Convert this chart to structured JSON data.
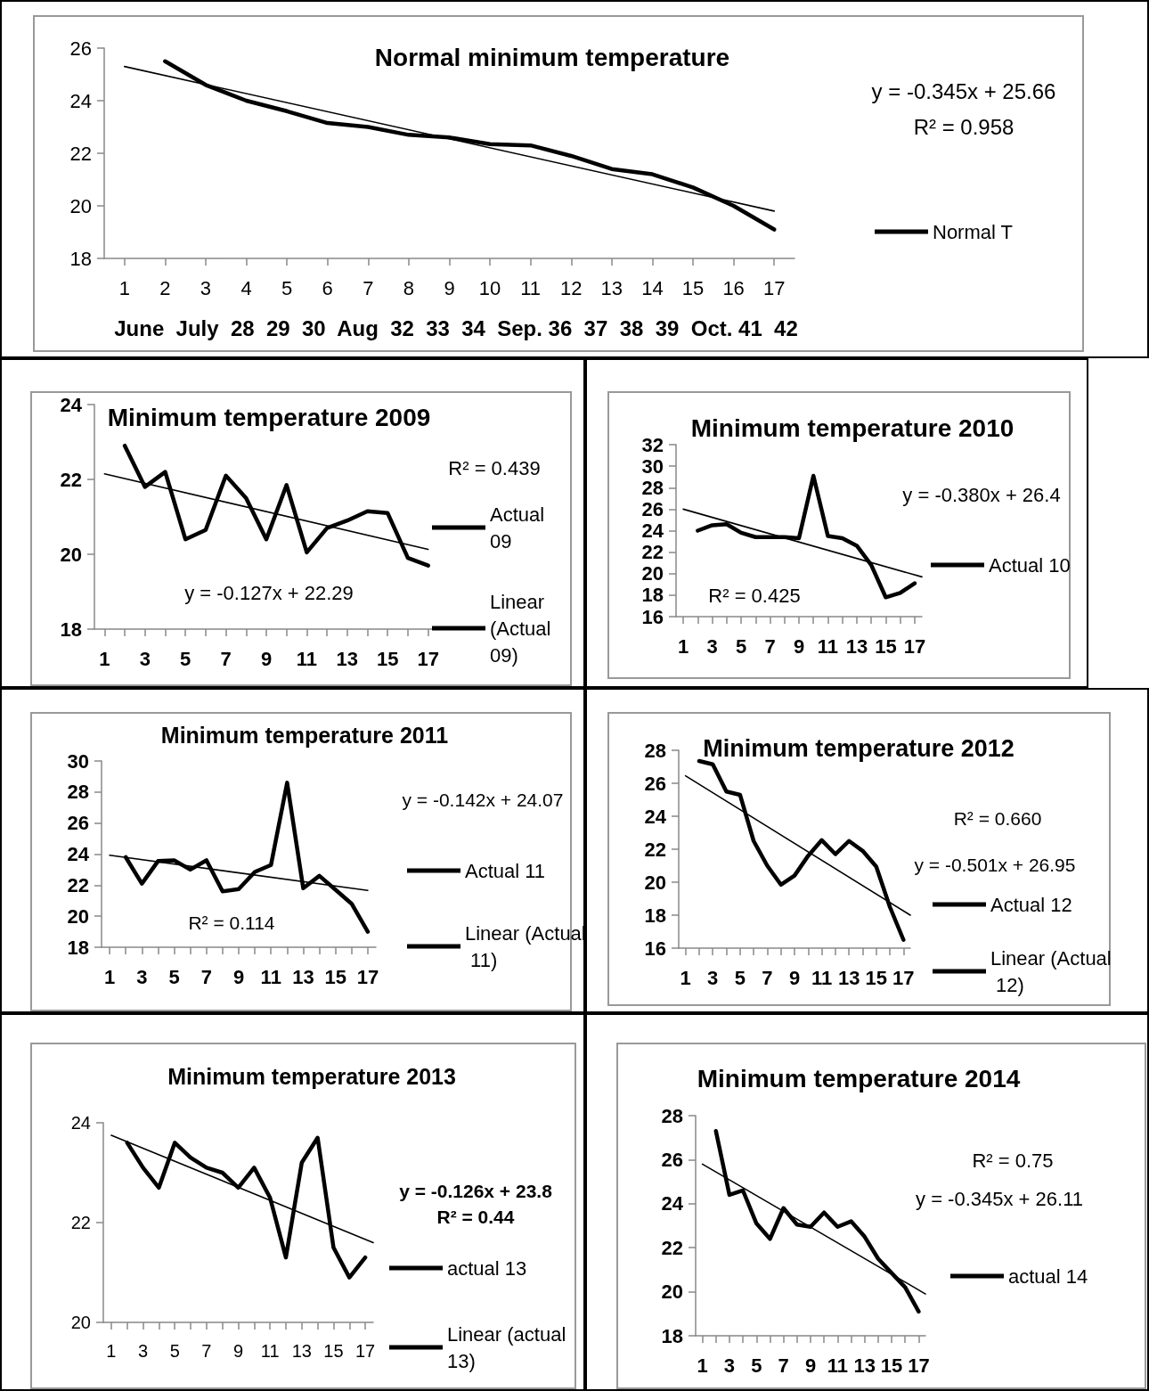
{
  "chart_data": [
    {
      "type": "line",
      "title": "Normal minimum temperature",
      "x": [
        2,
        3,
        4,
        5,
        6,
        7,
        8,
        9,
        10,
        11,
        12,
        13,
        14,
        15,
        16,
        17
      ],
      "xlim": [
        0.5,
        17.5
      ],
      "xticks": [
        1,
        2,
        3,
        4,
        5,
        6,
        7,
        8,
        9,
        10,
        11,
        12,
        13,
        14,
        15,
        16,
        17
      ],
      "ylim": [
        18,
        26
      ],
      "yticks": [
        18,
        20,
        22,
        24,
        26
      ],
      "grid": false,
      "legend": "right",
      "marker": "none",
      "line_style": "solid",
      "series": [
        {
          "name": "Normal T",
          "color": "#000000",
          "values": [
            25.5,
            24.6,
            24.0,
            23.6,
            23.15,
            23.0,
            22.7,
            22.6,
            22.35,
            22.3,
            21.9,
            21.4,
            21.2,
            20.7,
            20.0,
            19.1
          ]
        },
        {
          "type": "line",
          "color": "#000000",
          "x": [
            1,
            17
          ],
          "values": [
            25.3,
            19.8
          ]
        }
      ],
      "annotations": [
        "y = -0.345x + 25.66",
        "R² = 0.958",
        "June  July  28  29  30  Aug  32  33  34  Sep. 36  37  38  39  Oct. 41  42"
      ]
    },
    {
      "type": "line",
      "title": "Minimum temperature 2009",
      "x": [
        2,
        3,
        4,
        5,
        6,
        7,
        8,
        9,
        10,
        11,
        12,
        13,
        14,
        15,
        16,
        17
      ],
      "xlim": [
        0.5,
        17.5
      ],
      "xticks": [
        1,
        {
          "value": 2,
          "label": null
        },
        3,
        {
          "value": 4,
          "label": null
        },
        5,
        {
          "value": 6,
          "label": null
        },
        7,
        {
          "value": 8,
          "label": null
        },
        9,
        {
          "value": 10,
          "label": null
        },
        11,
        {
          "value": 12,
          "label": null
        },
        13,
        {
          "value": 14,
          "label": null
        },
        15,
        {
          "value": 16,
          "label": null
        },
        17
      ],
      "ylim": [
        18,
        24
      ],
      "yticks": [
        18,
        20,
        22,
        24
      ],
      "grid": false,
      "legend": "right",
      "marker": "none",
      "line_style": "solid",
      "series": [
        {
          "name": "Actual 09",
          "color": "#000000",
          "values": [
            22.9,
            21.8,
            22.2,
            20.4,
            20.65,
            22.1,
            21.5,
            20.4,
            21.85,
            20.05,
            20.7,
            20.9,
            21.15,
            21.1,
            19.9,
            19.7
          ]
        },
        {
          "name": "Linear (Actual 09)",
          "type": "line",
          "color": "#000000",
          "x": [
            1,
            17
          ],
          "values": [
            22.15,
            20.13
          ]
        }
      ],
      "annotations": [
        "R² = 0.439",
        "y = -0.127x + 22.29"
      ]
    },
    {
      "type": "line",
      "title": "Minimum temperature 2010",
      "x": [
        2,
        3,
        4,
        5,
        6,
        7,
        8,
        9,
        10,
        11,
        12,
        13,
        14,
        15,
        16,
        17
      ],
      "xlim": [
        0.5,
        17.5
      ],
      "xticks": [
        1,
        {
          "value": 2,
          "label": null
        },
        3,
        {
          "value": 4,
          "label": null
        },
        5,
        {
          "value": 6,
          "label": null
        },
        7,
        {
          "value": 8,
          "label": null
        },
        9,
        {
          "value": 10,
          "label": null
        },
        11,
        {
          "value": 12,
          "label": null
        },
        13,
        {
          "value": 14,
          "label": null
        },
        15,
        {
          "value": 16,
          "label": null
        },
        17
      ],
      "ylim": [
        16,
        32
      ],
      "yticks": [
        16,
        18,
        20,
        22,
        24,
        26,
        28,
        30,
        32
      ],
      "grid": false,
      "legend": "right",
      "marker": "none",
      "line_style": "solid",
      "series": [
        {
          "name": "Actual 10",
          "color": "#000000",
          "values": [
            24.0,
            24.5,
            24.6,
            23.8,
            23.4,
            23.4,
            23.4,
            23.3,
            29.1,
            23.5,
            23.3,
            22.6,
            20.8,
            17.8,
            18.2,
            19.1
          ]
        },
        {
          "type": "line",
          "color": "#000000",
          "x": [
            1,
            17.5
          ],
          "values": [
            26.0,
            19.7
          ]
        }
      ],
      "annotations": [
        "y = -0.380x + 26.4",
        "R² = 0.425"
      ]
    },
    {
      "type": "line",
      "title": "Minimum temperature 2011",
      "x": [
        2,
        3,
        4,
        5,
        6,
        7,
        8,
        9,
        10,
        11,
        12,
        13,
        14,
        15,
        16,
        17
      ],
      "xlim": [
        0.5,
        17.5
      ],
      "xticks": [
        1,
        {
          "value": 2,
          "label": null
        },
        3,
        {
          "value": 4,
          "label": null
        },
        5,
        {
          "value": 6,
          "label": null
        },
        7,
        {
          "value": 8,
          "label": null
        },
        9,
        {
          "value": 10,
          "label": null
        },
        11,
        {
          "value": 12,
          "label": null
        },
        13,
        {
          "value": 14,
          "label": null
        },
        15,
        {
          "value": 16,
          "label": null
        },
        17
      ],
      "ylim": [
        18,
        30
      ],
      "yticks": [
        18,
        20,
        22,
        24,
        26,
        28,
        30
      ],
      "grid": false,
      "legend": "right",
      "marker": "none",
      "line_style": "solid",
      "series": [
        {
          "name": "Actual 11",
          "color": "#000000",
          "values": [
            23.8,
            22.1,
            23.55,
            23.6,
            23.0,
            23.6,
            21.6,
            21.75,
            22.85,
            23.3,
            28.6,
            21.8,
            22.6,
            21.7,
            20.8,
            19.0
          ]
        },
        {
          "name": "Linear (Actual 11)",
          "type": "line",
          "color": "#000000",
          "x": [
            1,
            17
          ],
          "values": [
            23.93,
            21.66
          ]
        }
      ],
      "annotations": [
        "y = -0.142x + 24.07",
        "R² = 0.114"
      ]
    },
    {
      "type": "line",
      "title": "Minimum temperature 2012",
      "x": [
        2,
        3,
        4,
        5,
        6,
        7,
        8,
        9,
        10,
        11,
        12,
        13,
        14,
        15,
        16,
        17
      ],
      "xlim": [
        0.5,
        17.5
      ],
      "xticks": [
        1,
        {
          "value": 2,
          "label": null
        },
        3,
        {
          "value": 4,
          "label": null
        },
        5,
        {
          "value": 6,
          "label": null
        },
        7,
        {
          "value": 8,
          "label": null
        },
        9,
        {
          "value": 10,
          "label": null
        },
        11,
        {
          "value": 12,
          "label": null
        },
        13,
        {
          "value": 14,
          "label": null
        },
        15,
        {
          "value": 16,
          "label": null
        },
        17
      ],
      "ylim": [
        16,
        28
      ],
      "yticks": [
        16,
        18,
        20,
        22,
        24,
        26,
        28
      ],
      "grid": false,
      "legend": "right",
      "marker": "none",
      "line_style": "solid",
      "series": [
        {
          "name": "Actual 12",
          "color": "#000000",
          "values": [
            27.35,
            27.15,
            25.5,
            25.3,
            22.5,
            21.0,
            19.85,
            20.4,
            21.6,
            22.55,
            21.7,
            22.5,
            21.9,
            20.95,
            18.5,
            16.5
          ]
        },
        {
          "name": "Linear (Actual 12)",
          "type": "line",
          "color": "#000000",
          "x": [
            1,
            17.5
          ],
          "values": [
            26.45,
            18.0
          ]
        }
      ],
      "annotations": [
        "R² = 0.660",
        "y = -0.501x + 26.95"
      ]
    },
    {
      "type": "line",
      "title": "Minimum temperature 2013",
      "x": [
        2,
        3,
        4,
        5,
        6,
        7,
        8,
        9,
        10,
        11,
        12,
        13,
        14,
        15,
        16,
        17
      ],
      "xlim": [
        0.5,
        17.5
      ],
      "xticks": [
        1,
        {
          "value": 2,
          "label": null
        },
        3,
        {
          "value": 4,
          "label": null
        },
        5,
        {
          "value": 6,
          "label": null
        },
        7,
        {
          "value": 8,
          "label": null
        },
        9,
        {
          "value": 10,
          "label": null
        },
        11,
        {
          "value": 12,
          "label": null
        },
        13,
        {
          "value": 14,
          "label": null
        },
        15,
        {
          "value": 16,
          "label": null
        },
        17
      ],
      "ylim": [
        20,
        24
      ],
      "yticks": [
        20,
        22,
        24
      ],
      "grid": false,
      "legend": "right",
      "marker": "none",
      "line_style": "solid",
      "series": [
        {
          "name": "actual 13",
          "color": "#000000",
          "values": [
            23.6,
            23.1,
            22.7,
            23.6,
            23.3,
            23.1,
            23.0,
            22.7,
            23.1,
            22.5,
            21.3,
            23.2,
            23.7,
            21.5,
            20.9,
            21.3
          ]
        },
        {
          "name": "Linear (actual 13)",
          "type": "line",
          "color": "#000000",
          "x": [
            1,
            17.5
          ],
          "values": [
            23.75,
            21.6
          ]
        }
      ],
      "annotations": [
        "y = -0.126x + 23.8",
        "R² = 0.44"
      ]
    },
    {
      "type": "line",
      "title": "Minimum temperature 2014",
      "x": [
        2,
        3,
        4,
        5,
        6,
        7,
        8,
        9,
        10,
        11,
        12,
        13,
        14,
        15,
        16,
        17
      ],
      "xlim": [
        0.5,
        17.5
      ],
      "xticks": [
        1,
        {
          "value": 2,
          "label": null
        },
        3,
        {
          "value": 4,
          "label": null
        },
        5,
        {
          "value": 6,
          "label": null
        },
        7,
        {
          "value": 8,
          "label": null
        },
        9,
        {
          "value": 10,
          "label": null
        },
        11,
        {
          "value": 12,
          "label": null
        },
        13,
        {
          "value": 14,
          "label": null
        },
        15,
        {
          "value": 16,
          "label": null
        },
        17
      ],
      "ylim": [
        18,
        28
      ],
      "yticks": [
        18,
        20,
        22,
        24,
        26,
        28
      ],
      "grid": false,
      "legend": "right",
      "marker": "none",
      "line_style": "solid",
      "series": [
        {
          "name": "actual 14",
          "color": "#000000",
          "values": [
            27.3,
            24.4,
            24.6,
            23.1,
            22.4,
            23.8,
            23.05,
            22.95,
            23.6,
            22.95,
            23.2,
            22.5,
            21.5,
            20.85,
            20.2,
            19.1
          ]
        },
        {
          "type": "line",
          "color": "#000000",
          "x": [
            1,
            17.5
          ],
          "values": [
            25.8,
            19.9
          ]
        }
      ],
      "annotations": [
        "R² = 0.75",
        "y = -0.345x + 26.11"
      ]
    }
  ]
}
